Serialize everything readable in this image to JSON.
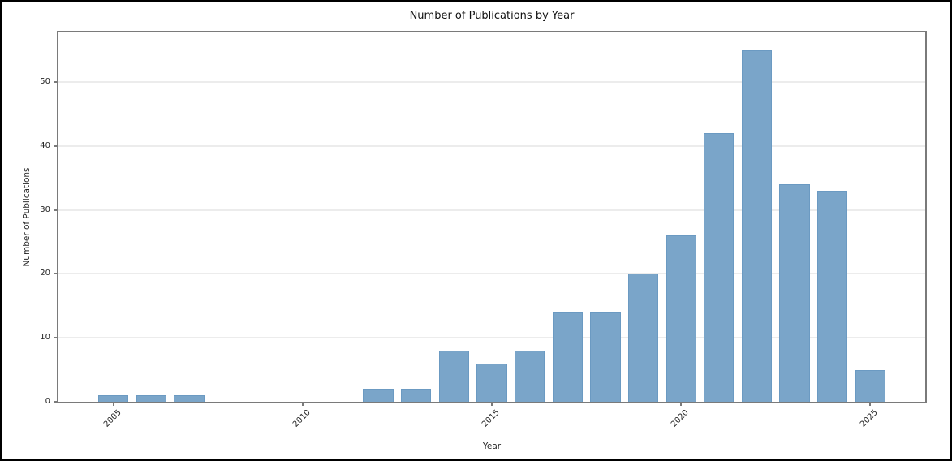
{
  "chart_data": {
    "type": "bar",
    "title": "Number of Publications by Year",
    "xlabel": "Year",
    "ylabel": "Number of Publications",
    "x": [
      2005,
      2006,
      2007,
      2008,
      2009,
      2010,
      2011,
      2012,
      2013,
      2014,
      2015,
      2016,
      2017,
      2018,
      2019,
      2020,
      2021,
      2022,
      2023,
      2024,
      2025
    ],
    "values": [
      1,
      1,
      1,
      0,
      0,
      0,
      0,
      2,
      2,
      8,
      6,
      8,
      14,
      14,
      20,
      26,
      42,
      55,
      34,
      33,
      5
    ],
    "xticks": [
      2005,
      2010,
      2015,
      2020,
      2025
    ],
    "yticks": [
      0,
      10,
      20,
      30,
      40,
      50
    ],
    "xlim": [
      2003.55,
      2026.45
    ],
    "ylim": [
      0,
      57.75
    ],
    "bar_width_x": 0.8,
    "grid": "horizontal-only",
    "legend": "none",
    "xtick_rotation_deg": 45,
    "colors": {
      "bar_fill": "#7aa5c9",
      "bar_edge": "#6b9ac2",
      "grid_line": "#ececec",
      "spine": "#7a7a7a",
      "tick_label": "#262626",
      "title": "#111111",
      "outer_border": "#000000",
      "background": "#ffffff"
    }
  }
}
